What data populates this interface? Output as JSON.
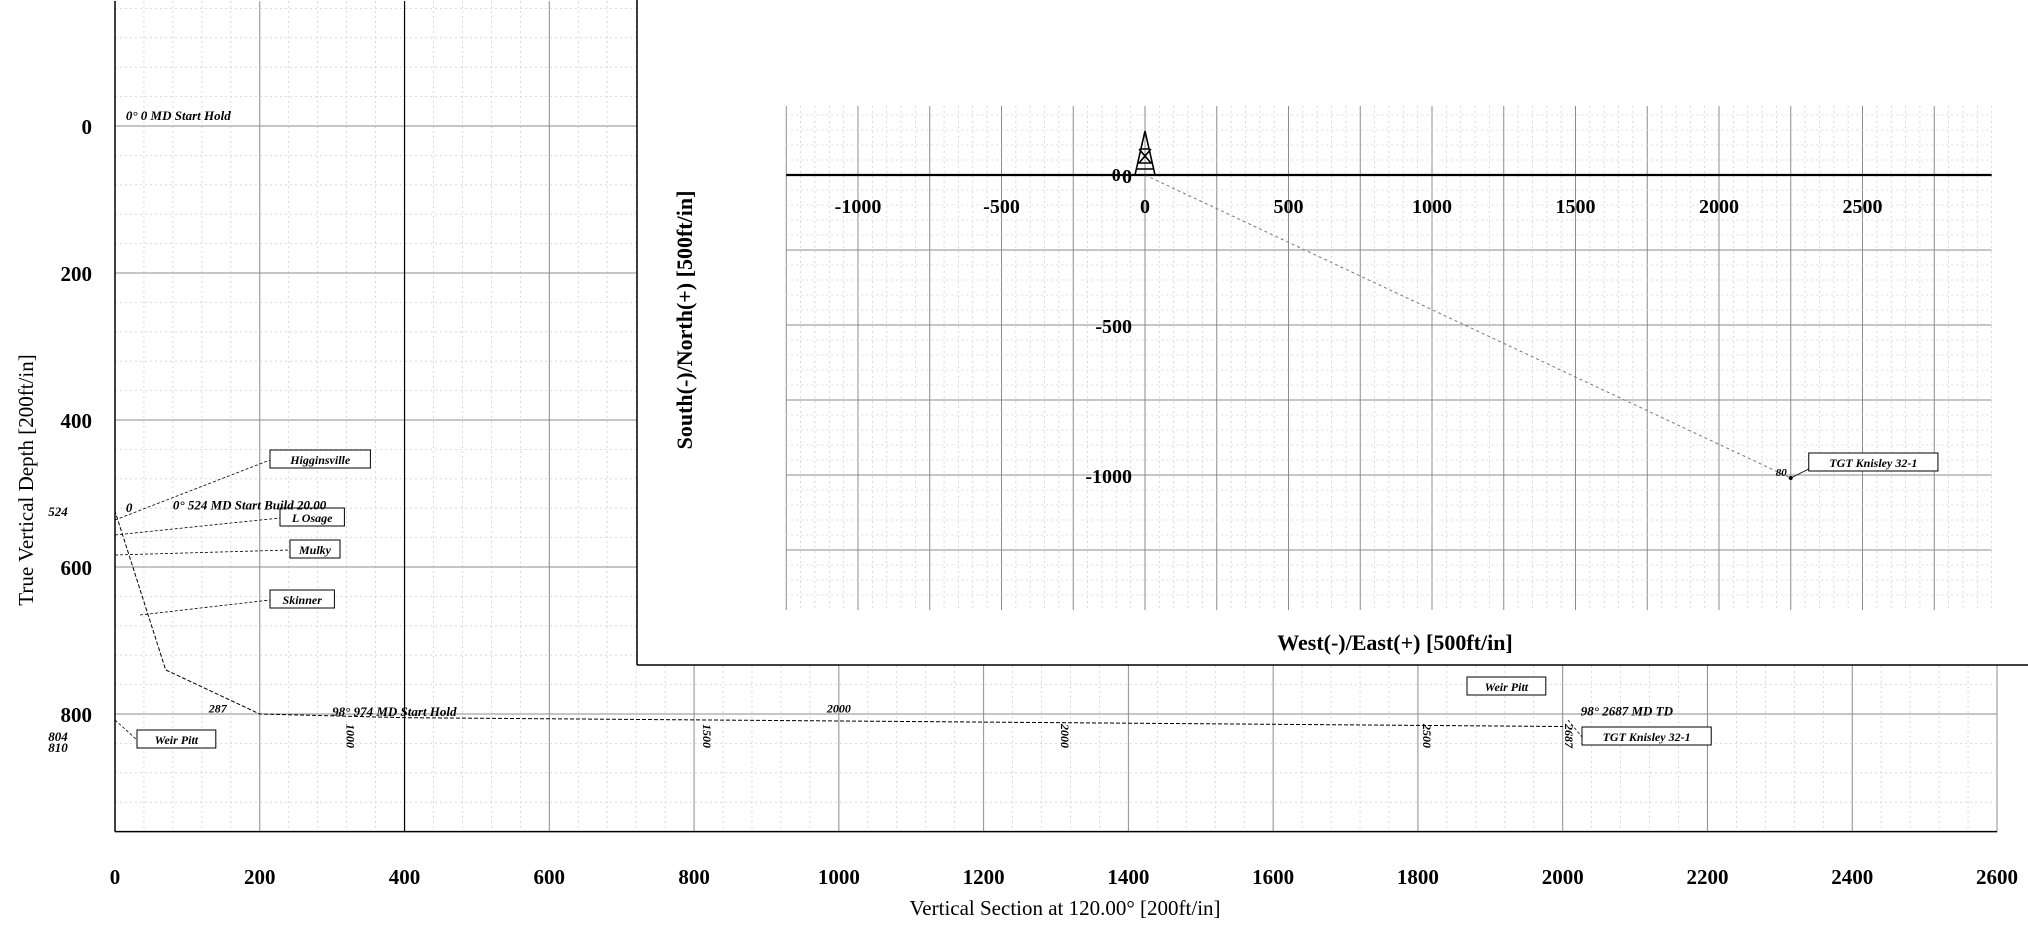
{
  "chart_data": [
    {
      "type": "line",
      "panel": "vertical-section",
      "xlabel": "Vertical Section at 120.00° [200ft/in]",
      "ylabel": "True Vertical Depth [200ft/in]",
      "xlim": [
        0,
        2600
      ],
      "ylim": [
        960,
        -170
      ],
      "x_ticks": [
        0,
        200,
        400,
        600,
        800,
        1000,
        1200,
        1400,
        1600,
        1800,
        2000,
        2200,
        2400,
        2600
      ],
      "x_tick_labels": [
        "0",
        "200",
        "400",
        "600",
        "800",
        "1000",
        "1200",
        "1400",
        "1600",
        "1800",
        "2000",
        "2200",
        "2400",
        "2600"
      ],
      "y_ticks": [
        0,
        200,
        400,
        600,
        800
      ],
      "y_tick_labels": [
        "0",
        "200",
        "400",
        "600",
        "800"
      ],
      "grid": true,
      "well_path": {
        "x": [
          0,
          0,
          70,
          200,
          400,
          800,
          1200,
          1600,
          2000
        ],
        "y": [
          0,
          524,
          740,
          800,
          805,
          808,
          811,
          814,
          817
        ]
      },
      "md_markers": [
        {
          "label": "1000",
          "x": 320,
          "y": 830
        },
        {
          "label": "1500",
          "x": 812,
          "y": 830
        },
        {
          "label": "2000",
          "x": 1307,
          "y": 830
        },
        {
          "label": "2500",
          "x": 1807,
          "y": 830
        },
        {
          "label": "2687",
          "x": 2003,
          "y": 830
        },
        {
          "label": "2000",
          "x": 1000,
          "y": 798
        },
        {
          "label": "287",
          "x": 142,
          "y": 798
        }
      ],
      "side_labels": [
        {
          "label": "524",
          "y": 524
        },
        {
          "label": "804",
          "y": 830
        },
        {
          "label": "810",
          "y": 845
        }
      ],
      "annotations": [
        {
          "label": "0° 0 MD Start Hold",
          "x": 15,
          "y": -8
        },
        {
          "label": "0",
          "x": 15,
          "y": 525
        },
        {
          "label": "0° 524 MD Start Build 20.00",
          "x": 80,
          "y": 522
        },
        {
          "label": "98° 974 MD Start Hold",
          "x": 300,
          "y": 803
        },
        {
          "label": "98° 2687 MD TD",
          "x": 2025,
          "y": 802
        }
      ],
      "formations": [
        {
          "name": "Higginsville",
          "y": 470
        },
        {
          "name": "L Osage",
          "y": 550
        },
        {
          "name": "Mulky",
          "y": 575
        },
        {
          "name": "Skinner",
          "y": 640
        },
        {
          "name": "Weir Pitt",
          "y": 820
        },
        {
          "name": "Weir Pitt",
          "y": 760
        },
        {
          "name": "TGT Knisley 32-1",
          "y": 830
        }
      ]
    },
    {
      "type": "line",
      "panel": "plan-view",
      "xlabel": "West(-)/East(+) [500ft/in]",
      "ylabel": "South(-)/North(+) [500ft/in]",
      "xlim": [
        -1250,
        2950
      ],
      "ylim": [
        -1450,
        230
      ],
      "x_ticks": [
        -1000,
        -500,
        0,
        500,
        1000,
        1500,
        2000,
        2500
      ],
      "x_tick_labels": [
        "-1000",
        "-500",
        "0",
        "500",
        "1000",
        "1500",
        "2000",
        "2500"
      ],
      "y_ticks": [
        0,
        -500,
        -1000
      ],
      "y_tick_labels": [
        "0",
        "-500",
        "-1000"
      ],
      "grid": true,
      "well_path": {
        "x": [
          0,
          2250
        ],
        "y": [
          0,
          -1010
        ]
      },
      "target": {
        "label": "TGT Knisley 32-1",
        "x": 2250,
        "y": -1010,
        "marker_label": "80"
      },
      "annotations": [
        {
          "label": "0",
          "x": -100,
          "y": 0
        }
      ]
    }
  ]
}
